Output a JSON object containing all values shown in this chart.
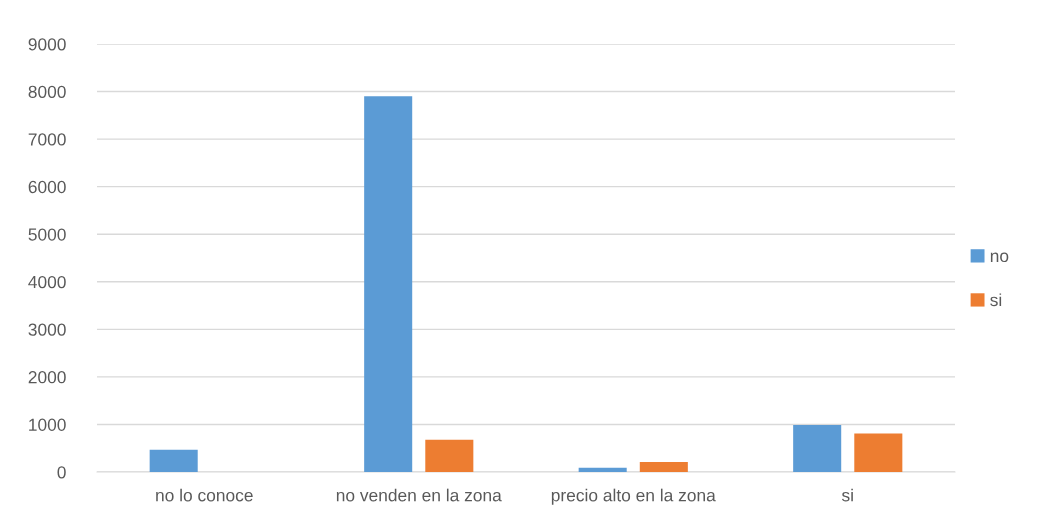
{
  "chart_data": {
    "type": "bar",
    "categories": [
      "no lo conoce",
      "no venden en la zona",
      "precio alto en la zona",
      "si"
    ],
    "series": [
      {
        "name": "no",
        "color": "#5b9bd5",
        "values": [
          470,
          7900,
          90,
          990
        ]
      },
      {
        "name": "si",
        "color": "#ed7d31",
        "values": [
          null,
          680,
          210,
          810
        ]
      }
    ],
    "ylim": [
      0,
      9000
    ],
    "yticks": [
      0,
      1000,
      2000,
      3000,
      4000,
      5000,
      6000,
      7000,
      8000,
      9000
    ],
    "grid": "y",
    "legend": "right"
  }
}
